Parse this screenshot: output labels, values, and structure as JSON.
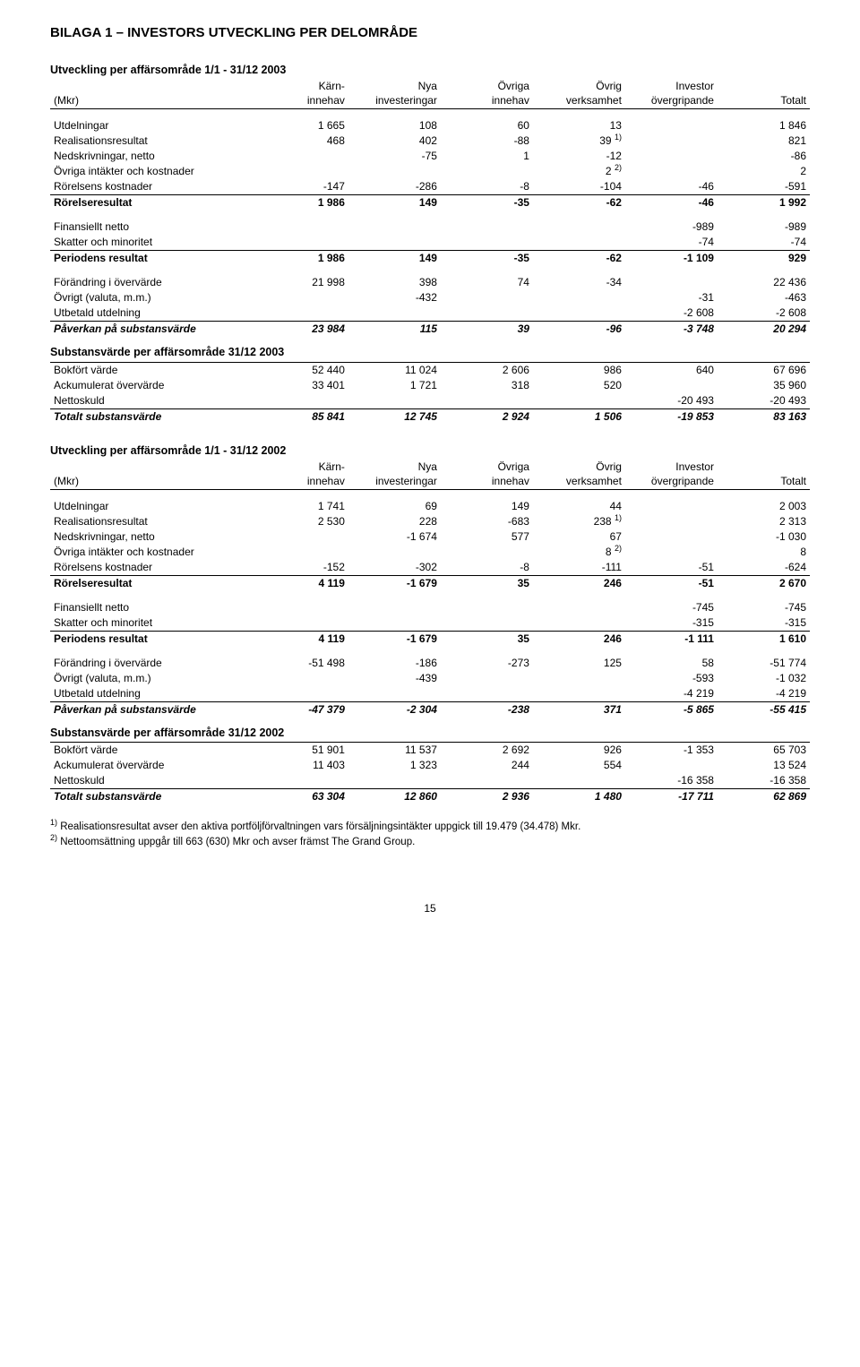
{
  "page_title": "BILAGA 1 – INVESTORS UTVECKLING PER DELOMRÅDE",
  "headers": {
    "top": [
      "Kärn-",
      "Nya",
      "Övriga",
      "Övrig",
      "Investor",
      ""
    ],
    "bottom_lead": "(Mkr)",
    "bottom": [
      "innehav",
      "investeringar",
      "innehav",
      "verksamhet",
      "övergripande",
      "Totalt"
    ]
  },
  "tbl2003": {
    "title": "Utveckling per affärsområde 1/1 - 31/12 2003",
    "rows": [
      {
        "label": "Utdelningar",
        "v": [
          "1 665",
          "108",
          "60",
          "13",
          "",
          "1 846"
        ]
      },
      {
        "label": "Realisationsresultat",
        "v": [
          "468",
          "402",
          "-88",
          "39",
          "",
          "821"
        ],
        "sup4": "1)"
      },
      {
        "label": "Nedskrivningar, netto",
        "v": [
          "",
          "-75",
          "1",
          "-12",
          "",
          "-86"
        ]
      },
      {
        "label": "Övriga intäkter och kostnader",
        "v": [
          "",
          "",
          "",
          "2",
          "",
          "2"
        ],
        "sup4": "2)"
      },
      {
        "label": "Rörelsens kostnader",
        "v": [
          "-147",
          "-286",
          "-8",
          "-104",
          "-46",
          "-591"
        ]
      },
      {
        "label": "Rörelseresultat",
        "v": [
          "1 986",
          "149",
          "-35",
          "-62",
          "-46",
          "1 992"
        ],
        "bold": true,
        "rule": true
      }
    ],
    "rows2": [
      {
        "label": "Finansiellt netto",
        "v": [
          "",
          "",
          "",
          "",
          "-989",
          "-989"
        ]
      },
      {
        "label": "Skatter och minoritet",
        "v": [
          "",
          "",
          "",
          "",
          "-74",
          "-74"
        ]
      },
      {
        "label": "Periodens resultat",
        "v": [
          "1 986",
          "149",
          "-35",
          "-62",
          "-1 109",
          "929"
        ],
        "bold": true,
        "rule": true
      }
    ],
    "rows3": [
      {
        "label": "Förändring i övervärde",
        "v": [
          "21 998",
          "398",
          "74",
          "-34",
          "",
          "22 436"
        ]
      },
      {
        "label": "Övrigt (valuta, m.m.)",
        "v": [
          "",
          "-432",
          "",
          "",
          "-31",
          "-463"
        ]
      },
      {
        "label": "Utbetald utdelning",
        "v": [
          "",
          "",
          "",
          "",
          "-2 608",
          "-2 608"
        ]
      },
      {
        "label": "Påverkan på substansvärde",
        "v": [
          "23 984",
          "115",
          "39",
          "-96",
          "-3 748",
          "20 294"
        ],
        "ital": true,
        "rule": true
      }
    ],
    "sub_title": "Substansvärde per affärsområde 31/12 2003",
    "rows4": [
      {
        "label": "Bokfört värde",
        "v": [
          "52 440",
          "11 024",
          "2 606",
          "986",
          "640",
          "67 696"
        ]
      },
      {
        "label": "Ackumulerat övervärde",
        "v": [
          "33 401",
          "1 721",
          "318",
          "520",
          "",
          "35 960"
        ]
      },
      {
        "label": "Nettoskuld",
        "v": [
          "",
          "",
          "",
          "",
          "-20 493",
          "-20 493"
        ]
      },
      {
        "label": "Totalt substansvärde",
        "v": [
          "85 841",
          "12 745",
          "2 924",
          "1 506",
          "-19 853",
          "83 163"
        ],
        "ital": true,
        "rule": true
      }
    ]
  },
  "tbl2002": {
    "title": "Utveckling per affärsområde 1/1 - 31/12 2002",
    "rows": [
      {
        "label": "Utdelningar",
        "v": [
          "1 741",
          "69",
          "149",
          "44",
          "",
          "2 003"
        ]
      },
      {
        "label": "Realisationsresultat",
        "v": [
          "2 530",
          "228",
          "-683",
          "238",
          "",
          "2 313"
        ],
        "sup4": "1)"
      },
      {
        "label": "Nedskrivningar, netto",
        "v": [
          "",
          "-1 674",
          "577",
          "67",
          "",
          "-1 030"
        ]
      },
      {
        "label": "Övriga intäkter och kostnader",
        "v": [
          "",
          "",
          "",
          "8",
          "",
          "8"
        ],
        "sup4": "2)"
      },
      {
        "label": "Rörelsens kostnader",
        "v": [
          "-152",
          "-302",
          "-8",
          "-111",
          "-51",
          "-624"
        ]
      },
      {
        "label": "Rörelseresultat",
        "v": [
          "4 119",
          "-1 679",
          "35",
          "246",
          "-51",
          "2 670"
        ],
        "bold": true,
        "rule": true
      }
    ],
    "rows2": [
      {
        "label": "Finansiellt netto",
        "v": [
          "",
          "",
          "",
          "",
          "-745",
          "-745"
        ]
      },
      {
        "label": "Skatter och minoritet",
        "v": [
          "",
          "",
          "",
          "",
          "-315",
          "-315"
        ]
      },
      {
        "label": "Periodens resultat",
        "v": [
          "4 119",
          "-1 679",
          "35",
          "246",
          "-1 111",
          "1 610"
        ],
        "bold": true,
        "rule": true
      }
    ],
    "rows3": [
      {
        "label": "Förändring i övervärde",
        "v": [
          "-51 498",
          "-186",
          "-273",
          "125",
          "58",
          "-51 774"
        ]
      },
      {
        "label": "Övrigt (valuta, m.m.)",
        "v": [
          "",
          "-439",
          "",
          "",
          "-593",
          "-1 032"
        ]
      },
      {
        "label": "Utbetald utdelning",
        "v": [
          "",
          "",
          "",
          "",
          "-4 219",
          "-4 219"
        ]
      },
      {
        "label": "Påverkan på substansvärde",
        "v": [
          "-47 379",
          "-2 304",
          "-238",
          "371",
          "-5 865",
          "-55 415"
        ],
        "ital": true,
        "rule": true
      }
    ],
    "sub_title": "Substansvärde per affärsområde 31/12 2002",
    "rows4": [
      {
        "label": "Bokfört värde",
        "v": [
          "51 901",
          "11 537",
          "2 692",
          "926",
          "-1 353",
          "65 703"
        ]
      },
      {
        "label": "Ackumulerat övervärde",
        "v": [
          "11 403",
          "1 323",
          "244",
          "554",
          "",
          "13 524"
        ]
      },
      {
        "label": "Nettoskuld",
        "v": [
          "",
          "",
          "",
          "",
          "-16 358",
          "-16 358"
        ]
      },
      {
        "label": "Totalt substansvärde",
        "v": [
          "63 304",
          "12 860",
          "2 936",
          "1 480",
          "-17 711",
          "62 869"
        ],
        "ital": true,
        "rule": true
      }
    ]
  },
  "footnotes": {
    "f1_sup": "1)",
    "f1": " Realisationsresultat avser den aktiva portföljförvaltningen vars försäljningsintäkter uppgick till 19.479 (34.478) Mkr.",
    "f2_sup": "2)",
    "f2": " Nettoomsättning uppgår till 663 (630) Mkr och avser främst The Grand Group."
  },
  "page_number": "15"
}
